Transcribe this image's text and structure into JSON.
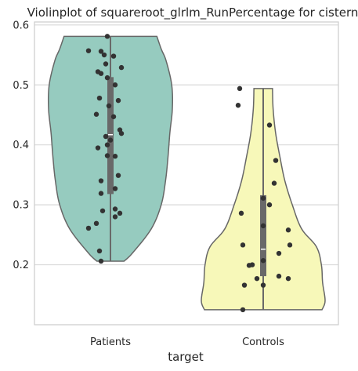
{
  "chart_data": {
    "type": "violin",
    "title": "Violinplot of squareroot_glrlm_RunPercentage for cistern",
    "xlabel": "target",
    "ylabel": "",
    "categories": [
      "Patients",
      "Controls"
    ],
    "ylim": [
      0.1,
      0.605
    ],
    "yticks": [
      0.2,
      0.3,
      0.4,
      0.5,
      0.6
    ],
    "ytick_labels": [
      "0.2",
      "0.3",
      "0.4",
      "0.5",
      "0.6"
    ],
    "grid": "horizontal",
    "colors": {
      "Patients": "#96cbbf",
      "Controls": "#f7f8b9",
      "violin_edge": "#676767",
      "points": "#333333",
      "box": "#696969",
      "median": "#ffffff",
      "grid": "#d9d9d9"
    },
    "series": [
      {
        "category": "Patients",
        "min": 0.206,
        "max": 0.581,
        "q1": 0.318,
        "median": 0.417,
        "q3": 0.513,
        "density": [
          [
            0.206,
            0.22
          ],
          [
            0.22,
            0.36
          ],
          [
            0.26,
            0.66
          ],
          [
            0.3,
            0.82
          ],
          [
            0.34,
            0.89
          ],
          [
            0.38,
            0.93
          ],
          [
            0.42,
            0.96
          ],
          [
            0.46,
            1.0
          ],
          [
            0.5,
            0.99
          ],
          [
            0.54,
            0.9
          ],
          [
            0.56,
            0.82
          ],
          [
            0.581,
            0.75
          ]
        ],
        "points": [
          [
            -0.02,
            0.581
          ],
          [
            -0.14,
            0.557
          ],
          [
            -0.06,
            0.556
          ],
          [
            -0.04,
            0.55
          ],
          [
            0.02,
            0.548
          ],
          [
            -0.03,
            0.535
          ],
          [
            0.07,
            0.529
          ],
          [
            -0.08,
            0.522
          ],
          [
            -0.06,
            0.519
          ],
          [
            -0.02,
            0.512
          ],
          [
            0.03,
            0.5
          ],
          [
            -0.07,
            0.478
          ],
          [
            0.05,
            0.474
          ],
          [
            -0.01,
            0.465
          ],
          [
            -0.09,
            0.451
          ],
          [
            0.02,
            0.447
          ],
          [
            0.06,
            0.425
          ],
          [
            0.07,
            0.419
          ],
          [
            -0.03,
            0.414
          ],
          [
            0.0,
            0.408
          ],
          [
            -0.02,
            0.4
          ],
          [
            -0.08,
            0.395
          ],
          [
            -0.02,
            0.382
          ],
          [
            0.03,
            0.381
          ],
          [
            0.05,
            0.349
          ],
          [
            -0.06,
            0.34
          ],
          [
            0.03,
            0.327
          ],
          [
            -0.06,
            0.319
          ],
          [
            0.03,
            0.293
          ],
          [
            -0.05,
            0.29
          ],
          [
            0.06,
            0.286
          ],
          [
            0.03,
            0.28
          ],
          [
            -0.09,
            0.269
          ],
          [
            -0.14,
            0.261
          ],
          [
            -0.07,
            0.223
          ],
          [
            -0.06,
            0.206
          ]
        ]
      },
      {
        "category": "Controls",
        "min": 0.125,
        "max": 0.494,
        "q1": 0.181,
        "median": 0.226,
        "q3": 0.316,
        "density": [
          [
            0.125,
            0.95
          ],
          [
            0.14,
            1.0
          ],
          [
            0.17,
            0.96
          ],
          [
            0.2,
            0.94
          ],
          [
            0.23,
            0.86
          ],
          [
            0.26,
            0.62
          ],
          [
            0.3,
            0.47
          ],
          [
            0.34,
            0.35
          ],
          [
            0.38,
            0.27
          ],
          [
            0.42,
            0.2
          ],
          [
            0.46,
            0.16
          ],
          [
            0.494,
            0.15
          ]
        ],
        "points": [
          [
            -0.15,
            0.494
          ],
          [
            -0.16,
            0.466
          ],
          [
            0.04,
            0.433
          ],
          [
            0.08,
            0.374
          ],
          [
            0.07,
            0.336
          ],
          [
            0.0,
            0.311
          ],
          [
            0.04,
            0.3
          ],
          [
            -0.14,
            0.286
          ],
          [
            0.0,
            0.265
          ],
          [
            0.16,
            0.258
          ],
          [
            0.17,
            0.233
          ],
          [
            -0.13,
            0.233
          ],
          [
            0.1,
            0.219
          ],
          [
            -0.07,
            0.2
          ],
          [
            -0.09,
            0.199
          ],
          [
            0.0,
            0.207
          ],
          [
            0.1,
            0.181
          ],
          [
            0.16,
            0.177
          ],
          [
            -0.04,
            0.177
          ],
          [
            0.0,
            0.166
          ],
          [
            -0.12,
            0.166
          ],
          [
            -0.13,
            0.125
          ]
        ]
      }
    ]
  }
}
